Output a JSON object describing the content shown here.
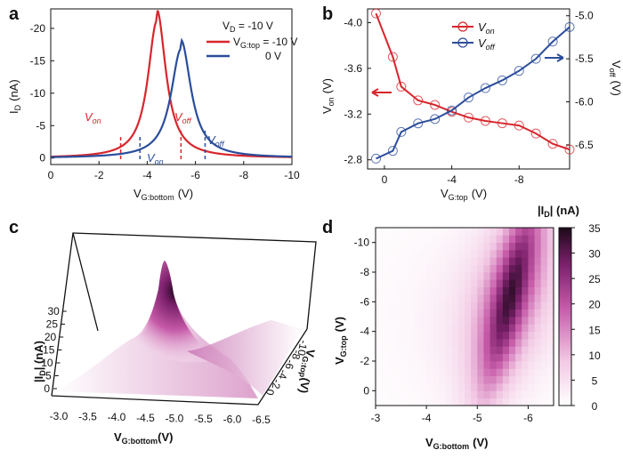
{
  "colors": {
    "red": "#d7262c",
    "blue": "#2b4d9b",
    "magenta": "#7a1f6a",
    "dark": "#1b0a18"
  },
  "chart_data": [
    {
      "panel": "a",
      "type": "line",
      "xlabel_main": "V",
      "xlabel_sub": "G:bottom",
      "xlabel_unit": "(V)",
      "ylabel_main": "I",
      "ylabel_sub": "D",
      "ylabel_unit": "(nA)",
      "xlim": [
        0,
        -10
      ],
      "ylim": [
        1,
        -23
      ],
      "x_ticks": [
        0,
        -2,
        -4,
        -6,
        -8,
        -10
      ],
      "x_tick_labels": [
        "0",
        "-2",
        "-4",
        "-6",
        "-8",
        "-10"
      ],
      "y_ticks": [
        0,
        -5,
        -10,
        -15,
        -20
      ],
      "y_tick_labels": [
        "0",
        "-5",
        "-10",
        "-15",
        "-20"
      ],
      "legend_title": "V_D = -10 V",
      "legend_title_main": "V",
      "legend_title_sub": "D",
      "legend_title_rest": " = -10 V",
      "legend_header_main": "V",
      "legend_header_sub": "G:top",
      "legend_header_rest": " = -10 V",
      "legend_second_label": "0 V",
      "series": [
        {
          "name": "V_G:top = -10 V",
          "color": "#d7262c",
          "peak_x": -4.4,
          "peak_y": -22,
          "width": 0.45
        },
        {
          "name": "0 V",
          "color": "#2b4d9b",
          "peak_x": -5.4,
          "peak_y": -17.5,
          "width": 0.5
        }
      ],
      "annotations": [
        {
          "text_main": "V",
          "text_sub": "on",
          "color": "#d7262c",
          "x": -2.9,
          "style": "dashed"
        },
        {
          "text_main": "V",
          "text_sub": "off",
          "color": "#d7262c",
          "x": -5.4,
          "style": "dashed"
        },
        {
          "text_main": "V",
          "text_sub": "on",
          "color": "#2b4d9b",
          "x": -3.7,
          "style": "dashed"
        },
        {
          "text_main": "V",
          "text_sub": "off",
          "color": "#2b4d9b",
          "x": -6.4,
          "style": "dashed"
        }
      ]
    },
    {
      "panel": "b",
      "type": "line",
      "xlabel_main": "V",
      "xlabel_sub": "G:top",
      "xlabel_unit": "(V)",
      "ylabel_left_main": "V",
      "ylabel_left_sub": "on",
      "ylabel_left_unit": "(V)",
      "ylabel_right_main": "V",
      "ylabel_right_sub": "off",
      "ylabel_right_unit": "(V)",
      "xlim": [
        1,
        -11
      ],
      "x_ticks": [
        0,
        -4,
        -8
      ],
      "x_tick_labels": [
        "0",
        "-4",
        "-8"
      ],
      "ylim_left": [
        -2.72,
        -4.12
      ],
      "y_left_ticks": [
        -2.8,
        -3.2,
        -3.6,
        -4.0
      ],
      "y_left_tick_labels": [
        "-2.8",
        "-3.2",
        "-3.6",
        "-4.0"
      ],
      "ylim_right": [
        -6.78,
        -4.92
      ],
      "y_right_ticks": [
        -5.0,
        -5.5,
        -6.0,
        -6.5
      ],
      "y_right_tick_labels": [
        "-5.0",
        "-5.5",
        "-6.0",
        "-6.5"
      ],
      "x": [
        0.5,
        -0.5,
        -1,
        -2,
        -3,
        -4,
        -5,
        -6,
        -7,
        -8,
        -9,
        -10,
        -11
      ],
      "series": [
        {
          "name": "V_on",
          "label_main": "V",
          "label_sub": "on",
          "color": "#d7262c",
          "axis": "left",
          "values": [
            -4.08,
            -3.7,
            -3.44,
            -3.32,
            -3.28,
            -3.22,
            -3.17,
            -3.14,
            -3.12,
            -3.1,
            -3.03,
            -2.94,
            -2.89
          ]
        },
        {
          "name": "V_off",
          "label_main": "V",
          "label_sub": "off",
          "color": "#2b4d9b",
          "axis": "right",
          "values": [
            -6.66,
            -6.57,
            -6.35,
            -6.25,
            -6.2,
            -6.1,
            -5.95,
            -5.84,
            -5.75,
            -5.64,
            -5.5,
            -5.3,
            -5.13
          ]
        }
      ]
    },
    {
      "panel": "c",
      "type": "surface3d",
      "zlabel_main": "|I",
      "zlabel_sub": "D",
      "zlabel_rest": "| (nA)",
      "z_ticks": [
        "0",
        "5",
        "10",
        "15",
        "20",
        "25",
        "30"
      ],
      "xlabel_main": "V",
      "xlabel_sub": "G:bottom",
      "xlabel_unit": "(V)",
      "x_tick_labels": [
        "-3.0",
        "-3.5",
        "-4.0",
        "-4.5",
        "-5.0",
        "-5.5",
        "-6.0",
        "-6.5"
      ],
      "ylabel_main": "V",
      "ylabel_sub": "G:top",
      "ylabel_unit": "(V)",
      "y_tick_labels": [
        "0",
        "-2",
        "-4",
        "-6",
        "-8",
        "-10"
      ]
    },
    {
      "panel": "d",
      "type": "heatmap",
      "xlabel_main": "V",
      "xlabel_sub": "G:bottom",
      "xlabel_unit": "(V)",
      "ylabel_main": "V",
      "ylabel_sub": "G:top",
      "ylabel_unit": "(V)",
      "xlim": [
        -3.0,
        -6.5
      ],
      "ylim": [
        1,
        -11
      ],
      "x_ticks": [
        -3,
        -4,
        -5,
        -6
      ],
      "x_tick_labels": [
        "-3",
        "-4",
        "-5",
        "-6"
      ],
      "y_ticks": [
        0,
        -2,
        -4,
        -6,
        -8,
        -10
      ],
      "y_tick_labels": [
        "0",
        "-2",
        "-4",
        "-6",
        "-8",
        "-10"
      ],
      "colorbar_label": "|I_D| (nA)",
      "colorbar_label_pre": "|I",
      "colorbar_label_sub": "D",
      "colorbar_label_post": "| (nA)",
      "colorbar_ticks": [
        0,
        5,
        10,
        15,
        20,
        25,
        30,
        35
      ],
      "colorbar_tick_labels": [
        "0",
        "5",
        "10",
        "15",
        "20",
        "25",
        "30",
        "35"
      ],
      "zlim": [
        0,
        35
      ],
      "ridge_intercept_x": -5.2,
      "ridge_slope": 0.07,
      "peak_value": 33,
      "peak_y": -6.5
    }
  ],
  "panel_labels": [
    "a",
    "b",
    "c",
    "d"
  ]
}
